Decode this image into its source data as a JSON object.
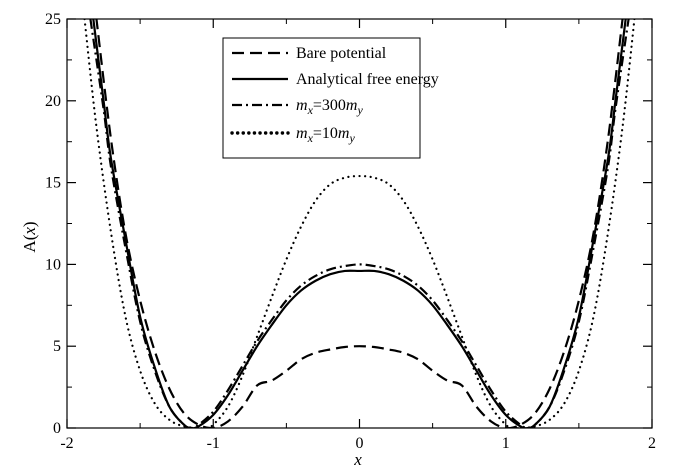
{
  "chart_data": {
    "type": "line",
    "title": "",
    "xlabel": "x",
    "ylabel_prefix": "A(",
    "ylabel_var": "x",
    "ylabel_suffix": ")",
    "xlim": [
      -2,
      2
    ],
    "ylim": [
      0,
      25
    ],
    "x_ticks": [
      -2,
      -1,
      0,
      1,
      2
    ],
    "x_tick_labels": [
      "-2",
      "-1",
      "0",
      "1",
      "2"
    ],
    "y_ticks": [
      0,
      5,
      10,
      15,
      20,
      25
    ],
    "y_tick_labels": [
      "0",
      "5",
      "10",
      "15",
      "20",
      "25"
    ],
    "grid": false,
    "legend_position": "top-center",
    "series": [
      {
        "key": "bare",
        "dash": "dashed",
        "label_parts": [
          {
            "t": "Bare potential",
            "s": "n"
          }
        ],
        "x": [
          -1.8,
          -1.7,
          -1.6,
          -1.5,
          -1.4,
          -1.3,
          -1.2,
          -1.1,
          -1.0,
          -0.9,
          -0.8,
          -0.7,
          -0.6,
          -0.5,
          -0.4,
          -0.3,
          -0.2,
          -0.1,
          0.0,
          0.1,
          0.2,
          0.3,
          0.4,
          0.5,
          0.6,
          0.7,
          0.8,
          0.9,
          1.0,
          1.1,
          1.2,
          1.3,
          1.4,
          1.5,
          1.6,
          1.7,
          1.8
        ],
        "y": [
          25.1,
          17.7,
          11.9,
          7.8,
          4.7,
          2.4,
          0.9,
          0.2,
          0.0,
          0.4,
          1.3,
          2.6,
          2.9,
          3.5,
          4.2,
          4.6,
          4.8,
          4.95,
          5.0,
          4.95,
          4.8,
          4.6,
          4.2,
          3.5,
          2.9,
          2.6,
          1.3,
          0.4,
          0.0,
          0.2,
          0.9,
          2.4,
          4.7,
          7.8,
          11.9,
          17.7,
          25.1
        ]
      },
      {
        "key": "analytical",
        "dash": "solid",
        "label_parts": [
          {
            "t": "Analytical free energy",
            "s": "n"
          }
        ],
        "x": [
          -1.82,
          -1.75,
          -1.7,
          -1.6,
          -1.5,
          -1.4,
          -1.3,
          -1.2,
          -1.15,
          -1.1,
          -1.0,
          -0.9,
          -0.8,
          -0.7,
          -0.6,
          -0.5,
          -0.4,
          -0.3,
          -0.2,
          -0.1,
          0.0,
          0.1,
          0.2,
          0.3,
          0.4,
          0.5,
          0.6,
          0.7,
          0.8,
          0.9,
          1.0,
          1.1,
          1.15,
          1.2,
          1.3,
          1.4,
          1.5,
          1.6,
          1.7,
          1.75,
          1.82
        ],
        "y": [
          25.0,
          20.0,
          16.5,
          11.5,
          6.8,
          3.7,
          1.3,
          0.2,
          0.0,
          0.1,
          0.8,
          2.0,
          3.5,
          5.0,
          6.3,
          7.5,
          8.4,
          9.0,
          9.4,
          9.6,
          9.6,
          9.6,
          9.4,
          9.0,
          8.4,
          7.5,
          6.3,
          5.0,
          3.5,
          2.0,
          0.8,
          0.1,
          0.0,
          0.2,
          1.3,
          3.7,
          6.8,
          11.5,
          16.5,
          20.0,
          25.0
        ]
      },
      {
        "key": "m300",
        "dash": "dashdot",
        "label_parts": [
          {
            "t": "m",
            "s": "i"
          },
          {
            "t": "x",
            "s": "sub"
          },
          {
            "t": "=300",
            "s": "n"
          },
          {
            "t": "m",
            "s": "i"
          },
          {
            "t": "y",
            "s": "sub"
          }
        ],
        "x": [
          -1.84,
          -1.75,
          -1.7,
          -1.6,
          -1.5,
          -1.4,
          -1.3,
          -1.2,
          -1.15,
          -1.1,
          -1.0,
          -0.9,
          -0.8,
          -0.7,
          -0.6,
          -0.5,
          -0.4,
          -0.3,
          -0.2,
          -0.1,
          0.0,
          0.1,
          0.2,
          0.3,
          0.4,
          0.5,
          0.6,
          0.7,
          0.8,
          0.9,
          1.0,
          1.1,
          1.15,
          1.2,
          1.3,
          1.4,
          1.5,
          1.6,
          1.7,
          1.75,
          1.84
        ],
        "y": [
          25.0,
          19.5,
          16.0,
          11.0,
          6.5,
          3.5,
          1.3,
          0.2,
          0.0,
          0.2,
          1.0,
          2.3,
          3.8,
          5.3,
          6.6,
          7.8,
          8.7,
          9.3,
          9.7,
          9.9,
          10.0,
          9.9,
          9.7,
          9.3,
          8.7,
          7.8,
          6.6,
          5.3,
          3.8,
          2.3,
          1.0,
          0.2,
          0.0,
          0.2,
          1.3,
          3.5,
          6.5,
          11.0,
          16.0,
          19.5,
          25.0
        ]
      },
      {
        "key": "m10",
        "dash": "dotted",
        "label_parts": [
          {
            "t": "m",
            "s": "i"
          },
          {
            "t": "x",
            "s": "sub"
          },
          {
            "t": "=10",
            "s": "n"
          },
          {
            "t": "m",
            "s": "i"
          },
          {
            "t": "y",
            "s": "sub"
          }
        ],
        "x": [
          -1.88,
          -1.8,
          -1.7,
          -1.6,
          -1.5,
          -1.4,
          -1.3,
          -1.2,
          -1.1,
          -1.05,
          -1.0,
          -0.9,
          -0.8,
          -0.7,
          -0.6,
          -0.5,
          -0.4,
          -0.3,
          -0.2,
          -0.1,
          0.0,
          0.1,
          0.2,
          0.3,
          0.4,
          0.5,
          0.6,
          0.7,
          0.8,
          0.9,
          1.0,
          1.05,
          1.1,
          1.2,
          1.3,
          1.4,
          1.5,
          1.6,
          1.7,
          1.8,
          1.88
        ],
        "y": [
          25.0,
          18.5,
          12.0,
          6.8,
          3.5,
          1.5,
          0.5,
          0.1,
          0.0,
          0.0,
          0.2,
          1.3,
          3.2,
          5.6,
          8.0,
          10.3,
          12.3,
          13.9,
          14.9,
          15.3,
          15.4,
          15.3,
          14.9,
          13.9,
          12.3,
          10.3,
          8.0,
          5.6,
          3.2,
          1.3,
          0.2,
          0.0,
          0.0,
          0.1,
          0.5,
          1.5,
          3.5,
          6.8,
          12.0,
          18.5,
          25.0
        ]
      }
    ]
  }
}
